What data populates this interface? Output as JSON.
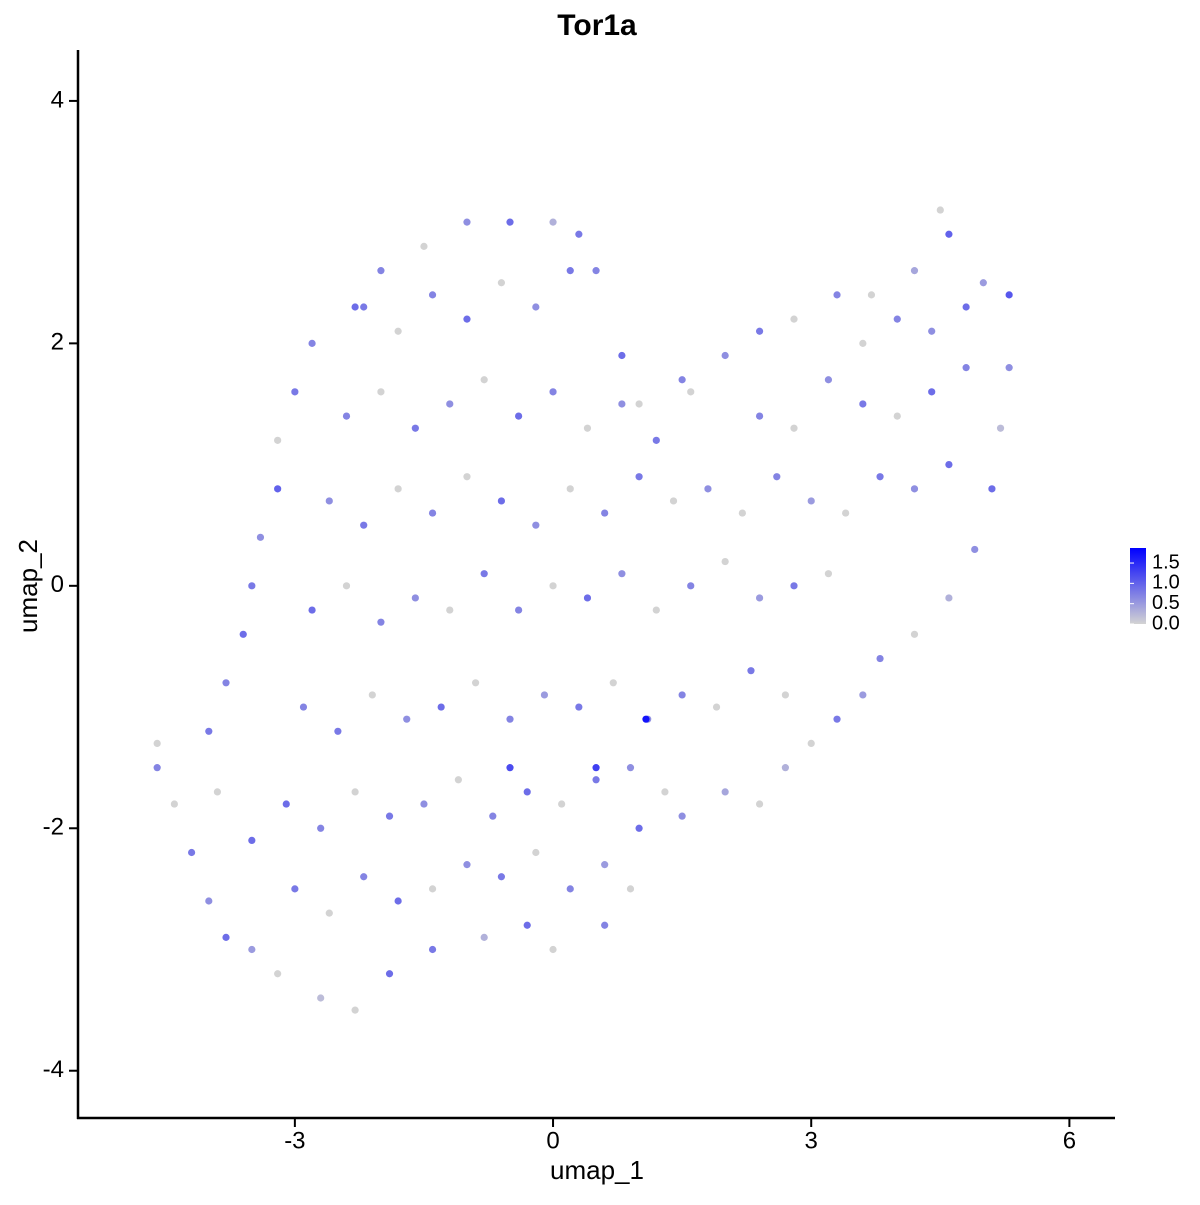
{
  "chart_data": {
    "type": "scatter",
    "title": "Tor1a",
    "x_label": "umap_1",
    "y_label": "umap_2",
    "xlim": [
      -5.52,
      6.53
    ],
    "ylim": [
      -4.39,
      4.42
    ],
    "xticks": [
      -3,
      0,
      3,
      6
    ],
    "yticks": [
      -4,
      -2,
      0,
      2,
      4
    ],
    "color_scale": [
      "#d3d3d3",
      "#0000ff"
    ],
    "color_lim": [
      0,
      1.87
    ],
    "color_ticks": [
      {
        "value": 0,
        "label": "0.0"
      },
      {
        "value": 0.5,
        "label": "0.5"
      },
      {
        "value": 1,
        "label": "1.0"
      },
      {
        "value": 1.5,
        "label": "1.5"
      }
    ],
    "x": [
      -4.6,
      -4.6,
      -4.4,
      -4.2,
      -4.0,
      -3.8,
      -3.5,
      -3.2,
      -2.7,
      -2.3,
      -1.9,
      -1.4,
      -0.8,
      -0.3,
      0.0,
      0.6,
      0.9,
      1.0,
      1.5,
      2.0,
      2.4,
      2.7,
      3.0,
      3.3,
      3.6,
      3.8,
      4.2,
      4.6,
      4.9,
      5.1,
      5.2,
      5.3,
      5.3,
      5.0,
      4.6,
      4.5,
      4.2,
      3.7,
      3.3,
      2.8,
      2.4,
      2.0,
      1.5,
      1.0,
      0.8,
      0.5,
      0.3,
      0.0,
      -0.5,
      -1.0,
      -1.5,
      -2.0,
      -2.3,
      -2.8,
      -3.0,
      -3.2,
      -3.2,
      -3.4,
      -3.5,
      -3.6,
      -3.8,
      -4.0,
      -3.9,
      -3.5,
      -3.0,
      -2.6,
      -2.2,
      -1.8,
      -1.4,
      -1.0,
      -0.6,
      -0.2,
      0.2,
      0.6,
      -3.1,
      -2.7,
      -2.3,
      -1.9,
      -1.5,
      -1.1,
      -0.7,
      -0.3,
      0.1,
      0.5,
      0.9,
      1.3,
      -2.9,
      -2.5,
      -2.1,
      -1.7,
      -1.3,
      -0.9,
      -0.5,
      -0.1,
      0.3,
      0.7,
      1.1,
      1.5,
      1.9,
      2.3,
      2.7,
      -2.8,
      -2.4,
      -2.0,
      -1.6,
      -1.2,
      -0.8,
      -0.4,
      0.0,
      0.4,
      0.8,
      1.2,
      1.6,
      2.0,
      2.4,
      2.8,
      3.2,
      -2.6,
      -2.2,
      -1.8,
      -1.4,
      -1.0,
      -0.6,
      -0.2,
      0.2,
      0.6,
      1.0,
      1.4,
      1.8,
      2.2,
      2.6,
      3.0,
      3.4,
      3.8,
      4.2,
      4.6,
      -2.4,
      -2.0,
      -1.6,
      -1.2,
      -0.8,
      -0.4,
      0.0,
      0.4,
      0.8,
      1.2,
      1.6,
      2.4,
      2.8,
      3.2,
      3.6,
      4.0,
      4.4,
      4.8,
      -2.2,
      -1.8,
      -1.4,
      -1.0,
      -0.6,
      -0.2,
      0.2,
      3.6,
      4.0,
      4.4,
      4.8,
      1.08,
      0.5,
      -0.5
    ],
    "y": [
      -1.3,
      -1.5,
      -1.8,
      -2.2,
      -2.6,
      -2.9,
      -3.0,
      -3.2,
      -3.4,
      -3.5,
      -3.2,
      -3.0,
      -2.9,
      -2.8,
      -3.0,
      -2.8,
      -2.5,
      -2.0,
      -1.9,
      -1.7,
      -1.8,
      -1.5,
      -1.3,
      -1.1,
      -0.9,
      -0.6,
      -0.4,
      -0.1,
      0.3,
      0.8,
      1.3,
      1.8,
      2.4,
      2.5,
      2.9,
      3.1,
      2.6,
      2.4,
      2.4,
      2.2,
      2.1,
      1.9,
      1.7,
      1.5,
      1.9,
      2.6,
      2.9,
      3.0,
      3.0,
      3.0,
      2.8,
      2.6,
      2.3,
      2.0,
      1.6,
      1.2,
      0.8,
      0.4,
      0.0,
      -0.4,
      -0.8,
      -1.2,
      -1.7,
      -2.1,
      -2.5,
      -2.7,
      -2.4,
      -2.6,
      -2.5,
      -2.3,
      -2.4,
      -2.2,
      -2.5,
      -2.3,
      -1.8,
      -2.0,
      -1.7,
      -1.9,
      -1.8,
      -1.6,
      -1.9,
      -1.7,
      -1.8,
      -1.6,
      -1.5,
      -1.7,
      -1.0,
      -1.2,
      -0.9,
      -1.1,
      -1.0,
      -0.8,
      -1.1,
      -0.9,
      -1.0,
      -0.8,
      -1.1,
      -0.9,
      -1.0,
      -0.7,
      -0.9,
      -0.2,
      0.0,
      -0.3,
      -0.1,
      -0.2,
      0.1,
      -0.2,
      0.0,
      -0.1,
      0.1,
      -0.2,
      0.0,
      0.2,
      -0.1,
      0.0,
      0.1,
      0.7,
      0.5,
      0.8,
      0.6,
      0.9,
      0.7,
      0.5,
      0.8,
      0.6,
      0.9,
      0.7,
      0.8,
      0.6,
      0.9,
      0.7,
      0.6,
      0.9,
      0.8,
      1.0,
      1.4,
      1.6,
      1.3,
      1.5,
      1.7,
      1.4,
      1.6,
      1.3,
      1.5,
      1.2,
      1.6,
      1.4,
      1.3,
      1.7,
      1.5,
      1.4,
      1.6,
      1.8,
      2.3,
      2.1,
      2.4,
      2.2,
      2.5,
      2.3,
      2.6,
      2.0,
      2.2,
      2.1,
      2.3,
      -1.1,
      -1.5,
      -1.5
    ],
    "values": [
      0,
      0.7,
      0,
      0.8,
      0.6,
      0.9,
      0.5,
      0,
      0.2,
      0,
      0.9,
      0.8,
      0.3,
      0.9,
      0,
      0.7,
      0,
      0.9,
      0.6,
      0.4,
      0,
      0.3,
      0,
      0.8,
      0.5,
      0.7,
      0,
      0.3,
      0.6,
      0.9,
      0.2,
      0.6,
      1.1,
      0.5,
      1.0,
      0,
      0.4,
      0,
      0.7,
      0,
      0.8,
      0.6,
      0.7,
      0,
      0.9,
      0.7,
      0.8,
      0.3,
      0.9,
      0.6,
      0,
      0.7,
      0.9,
      0.7,
      0.8,
      0,
      1.0,
      0.6,
      0.8,
      0.9,
      0.7,
      0.8,
      0,
      0.9,
      0.8,
      0,
      0.7,
      0.9,
      0,
      0.6,
      0.8,
      0,
      0.7,
      0.5,
      0.9,
      0.7,
      0,
      0.8,
      0.6,
      0,
      0.7,
      0.9,
      0,
      0.8,
      0.6,
      0,
      0.7,
      0.8,
      0,
      0.6,
      0.9,
      0,
      0.7,
      0.5,
      0.8,
      0,
      0.6,
      0.7,
      0,
      0.8,
      0,
      0.9,
      0,
      0.7,
      0.6,
      0,
      0.8,
      0.7,
      0,
      0.9,
      0.6,
      0,
      0.7,
      0,
      0.5,
      0.8,
      0,
      0.6,
      0.8,
      0,
      0.7,
      0,
      0.9,
      0.6,
      0,
      0.7,
      0.8,
      0,
      0.6,
      0,
      0.7,
      0.5,
      0,
      0.8,
      0.6,
      0.9,
      0.7,
      0,
      0.8,
      0.6,
      0,
      0.9,
      0.7,
      0,
      0.6,
      0.8,
      0,
      0.7,
      0,
      0.6,
      0.8,
      0,
      0.9,
      0.7,
      0.8,
      0,
      0.7,
      0.9,
      0,
      0.6,
      0.8,
      0,
      0.7,
      0.6,
      0.9,
      1.7,
      1.3,
      1.2
    ]
  }
}
